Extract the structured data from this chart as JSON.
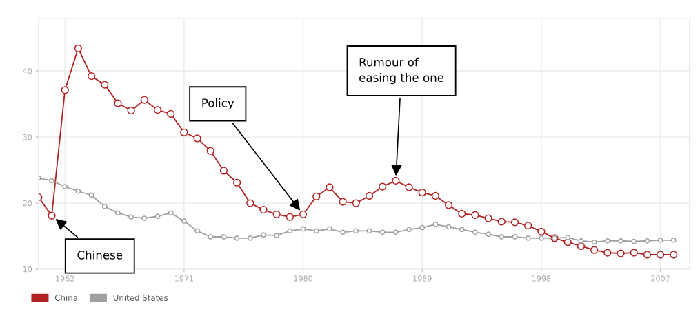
{
  "chart_data": {
    "type": "line",
    "x": [
      1960,
      1961,
      1962,
      1963,
      1964,
      1965,
      1966,
      1967,
      1968,
      1969,
      1970,
      1971,
      1972,
      1973,
      1974,
      1975,
      1976,
      1977,
      1978,
      1979,
      1980,
      1981,
      1982,
      1983,
      1984,
      1985,
      1986,
      1987,
      1988,
      1989,
      1990,
      1991,
      1992,
      1993,
      1994,
      1995,
      1996,
      1997,
      1998,
      1999,
      2000,
      2001,
      2002,
      2003,
      2004,
      2005,
      2006,
      2007,
      2008
    ],
    "series": [
      {
        "name": "China",
        "color": "#b22222",
        "values": [
          20.9,
          18.1,
          37.1,
          43.4,
          39.2,
          37.9,
          35.1,
          34.0,
          35.6,
          34.1,
          33.5,
          30.7,
          29.8,
          27.9,
          24.9,
          23.1,
          20.0,
          19.0,
          18.3,
          17.9,
          18.3,
          21.0,
          22.4,
          20.2,
          20.0,
          21.1,
          22.5,
          23.4,
          22.4,
          21.6,
          21.1,
          19.7,
          18.4,
          18.2,
          17.7,
          17.2,
          17.1,
          16.6,
          15.7,
          14.7,
          14.1,
          13.5,
          12.9,
          12.5,
          12.4,
          12.5,
          12.2,
          12.2,
          12.2
        ]
      },
      {
        "name": "United States",
        "color": "#a0a0a0",
        "values": [
          23.8,
          23.4,
          22.5,
          21.8,
          21.2,
          19.5,
          18.5,
          17.9,
          17.7,
          18.0,
          18.5,
          17.3,
          15.8,
          14.9,
          14.9,
          14.7,
          14.7,
          15.2,
          15.1,
          15.8,
          16.1,
          15.8,
          16.1,
          15.6,
          15.8,
          15.8,
          15.6,
          15.6,
          16.0,
          16.3,
          16.8,
          16.4,
          16.0,
          15.6,
          15.3,
          14.9,
          14.9,
          14.7,
          14.7,
          14.7,
          14.8,
          14.3,
          14.1,
          14.3,
          14.3,
          14.2,
          14.3,
          14.4,
          14.4
        ]
      }
    ],
    "xlim": [
      1960,
      2009.2
    ],
    "xticks": [
      1962,
      1971,
      1980,
      1989,
      1998,
      2007
    ],
    "ylim": [
      10,
      47.9
    ],
    "yticks": [
      10,
      20,
      30,
      40
    ],
    "grid": true,
    "legend": "bottom left",
    "marker": "circle",
    "line_style": "solid",
    "annotations": [
      {
        "text": "Chinese",
        "x": 1961,
        "y": 18.1
      },
      {
        "text": "Policy",
        "x": 1980,
        "y": 18.3
      },
      {
        "text": "Rumour of\neasing the one",
        "x": 1987,
        "y": 23.4
      }
    ]
  }
}
